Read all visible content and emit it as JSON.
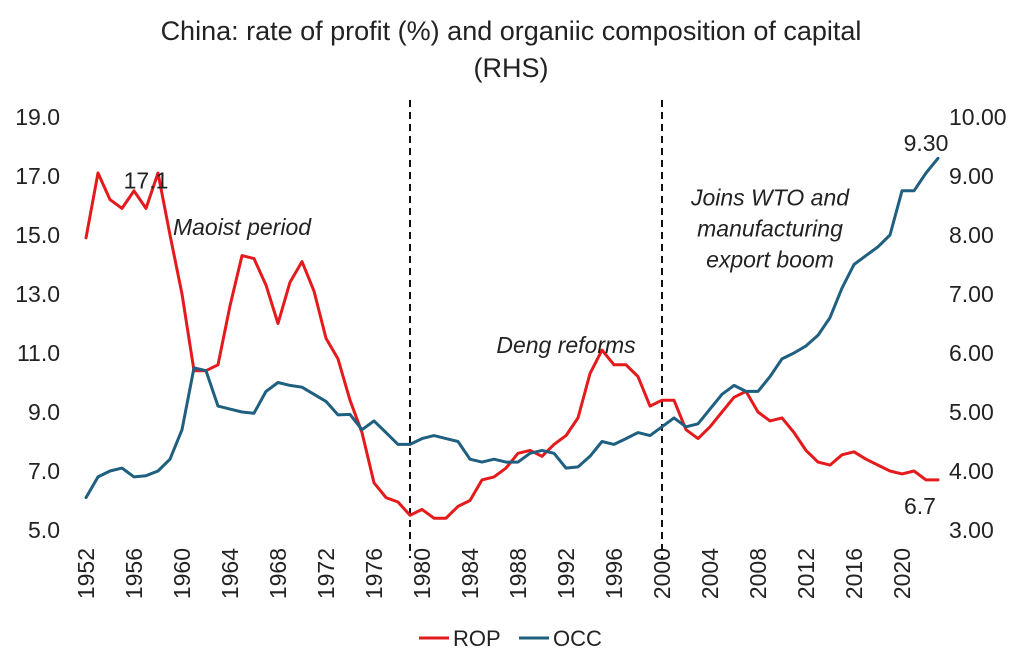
{
  "chart_data": {
    "type": "line",
    "title": "China: rate of profit (%) and organiic composition of capital (RHS)",
    "title_lines": [
      "China: rate of profit (%) and organiic composition of capital",
      "(RHS)"
    ],
    "x_ticks": [
      "1952",
      "1956",
      "1960",
      "1964",
      "1968",
      "1972",
      "1976",
      "1980",
      "1984",
      "1988",
      "1992",
      "1996",
      "2000",
      "2004",
      "2008",
      "2012",
      "2016",
      "2020"
    ],
    "xlim": [
      1952,
      2023
    ],
    "y_left": {
      "ticks": [
        "5.0",
        "7.0",
        "9.0",
        "11.0",
        "13.0",
        "15.0",
        "17.0",
        "19.0"
      ],
      "ylim": [
        5,
        19
      ]
    },
    "y_right": {
      "ticks": [
        "3.00",
        "4.00",
        "5.00",
        "6.00",
        "7.00",
        "8.00",
        "9.00",
        "10.00"
      ],
      "ylim": [
        3,
        10
      ]
    },
    "vlines": [
      1979,
      2000
    ],
    "series": [
      {
        "name": "ROP",
        "axis": "left",
        "color": "#e41a1c",
        "x": [
          1952,
          1953,
          1954,
          1955,
          1956,
          1957,
          1958,
          1959,
          1960,
          1961,
          1962,
          1963,
          1964,
          1965,
          1966,
          1967,
          1968,
          1969,
          1970,
          1971,
          1972,
          1973,
          1974,
          1975,
          1976,
          1977,
          1978,
          1979,
          1980,
          1981,
          1982,
          1983,
          1984,
          1985,
          1986,
          1987,
          1988,
          1989,
          1990,
          1991,
          1992,
          1993,
          1994,
          1995,
          1996,
          1997,
          1998,
          1999,
          2000,
          2001,
          2002,
          2003,
          2004,
          2005,
          2006,
          2007,
          2008,
          2009,
          2010,
          2011,
          2012,
          2013,
          2014,
          2015,
          2016,
          2017,
          2018,
          2019,
          2020,
          2021,
          2022,
          2023
        ],
        "values": [
          14.9,
          17.1,
          16.2,
          15.9,
          16.5,
          15.9,
          17.1,
          15.0,
          13.0,
          10.4,
          10.4,
          10.6,
          12.6,
          14.3,
          14.2,
          13.3,
          12.0,
          13.4,
          14.1,
          13.1,
          11.5,
          10.8,
          9.4,
          8.3,
          6.6,
          6.1,
          5.95,
          5.5,
          5.7,
          5.4,
          5.4,
          5.8,
          6.0,
          6.7,
          6.8,
          7.1,
          7.6,
          7.7,
          7.5,
          7.9,
          8.2,
          8.8,
          10.3,
          11.1,
          10.6,
          10.6,
          10.2,
          9.2,
          9.4,
          9.4,
          8.4,
          8.1,
          8.5,
          9.0,
          9.5,
          9.7,
          9.0,
          8.7,
          8.8,
          8.3,
          7.7,
          7.3,
          7.2,
          7.55,
          7.65,
          7.4,
          7.2,
          7.0,
          6.9,
          7.0,
          6.7,
          6.7
        ]
      },
      {
        "name": "OCC",
        "axis": "right",
        "color": "#1f5f7f",
        "x": [
          1952,
          1953,
          1954,
          1955,
          1956,
          1957,
          1958,
          1959,
          1960,
          1961,
          1962,
          1963,
          1964,
          1965,
          1966,
          1967,
          1968,
          1969,
          1970,
          1971,
          1972,
          1973,
          1974,
          1975,
          1976,
          1977,
          1978,
          1979,
          1980,
          1981,
          1982,
          1983,
          1984,
          1985,
          1986,
          1987,
          1988,
          1989,
          1990,
          1991,
          1992,
          1993,
          1994,
          1995,
          1996,
          1997,
          1998,
          1999,
          2000,
          2001,
          2002,
          2003,
          2004,
          2005,
          2006,
          2007,
          2008,
          2009,
          2010,
          2011,
          2012,
          2013,
          2014,
          2015,
          2016,
          2017,
          2018,
          2019,
          2020,
          2021,
          2022,
          2023
        ],
        "values": [
          3.55,
          3.9,
          4.0,
          4.05,
          3.9,
          3.92,
          4.0,
          4.2,
          4.7,
          5.75,
          5.7,
          5.1,
          5.05,
          5.0,
          4.98,
          5.35,
          5.5,
          5.45,
          5.42,
          5.3,
          5.18,
          4.95,
          4.96,
          4.7,
          4.85,
          4.65,
          4.45,
          4.45,
          4.55,
          4.6,
          4.55,
          4.5,
          4.2,
          4.15,
          4.2,
          4.15,
          4.15,
          4.3,
          4.35,
          4.3,
          4.05,
          4.07,
          4.25,
          4.5,
          4.45,
          4.55,
          4.65,
          4.6,
          4.75,
          4.9,
          4.75,
          4.8,
          5.05,
          5.3,
          5.45,
          5.35,
          5.35,
          5.6,
          5.9,
          6.0,
          6.12,
          6.3,
          6.6,
          7.1,
          7.5,
          7.65,
          7.8,
          8.0,
          8.75,
          8.75,
          9.05,
          9.3
        ]
      }
    ],
    "point_labels": [
      {
        "text": "17.1",
        "series": "ROP",
        "x": 1957
      },
      {
        "text": "9.30",
        "series": "OCC",
        "x": 2022
      },
      {
        "text": "6.7",
        "series": "ROP",
        "x": 2022
      }
    ],
    "annotations": [
      {
        "text": "Maoist period",
        "lines": [
          "Maoist period"
        ],
        "x": 1965,
        "y": 15.0
      },
      {
        "text": "Deng reforms",
        "lines": [
          "Deng reforms"
        ],
        "x": 1992,
        "y": 11.0
      },
      {
        "text": "Joins WTO and manufacturing export boom",
        "lines": [
          "Joins WTO and",
          "manufacturing",
          "export boom"
        ],
        "x": 2009,
        "y": 16.0
      }
    ],
    "legend": {
      "placement": "bottom",
      "entries": [
        "ROP",
        "OCC"
      ]
    }
  }
}
